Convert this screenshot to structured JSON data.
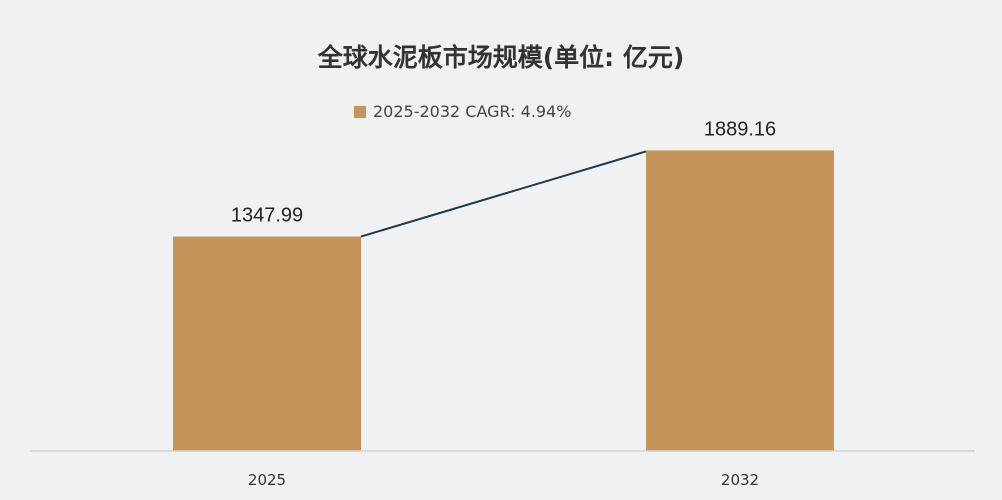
{
  "chart_data": {
    "type": "bar",
    "title": "全球水泥板市场规模(单位: 亿元)",
    "legend": {
      "label": "2025-2032 CAGR: 4.94%",
      "placement": "top-center"
    },
    "categories": [
      "2025",
      "2032"
    ],
    "values": [
      1347.99,
      1889.16
    ],
    "value_labels": [
      "1347.99",
      "1889.16"
    ],
    "xlabel": "",
    "ylabel": "",
    "ylim": [
      0,
      1900
    ],
    "grid": false,
    "connector_line": true,
    "colors": {
      "bar": "#c4945a",
      "line": "#1f3a4d",
      "axis": "#d0d3d8"
    }
  }
}
